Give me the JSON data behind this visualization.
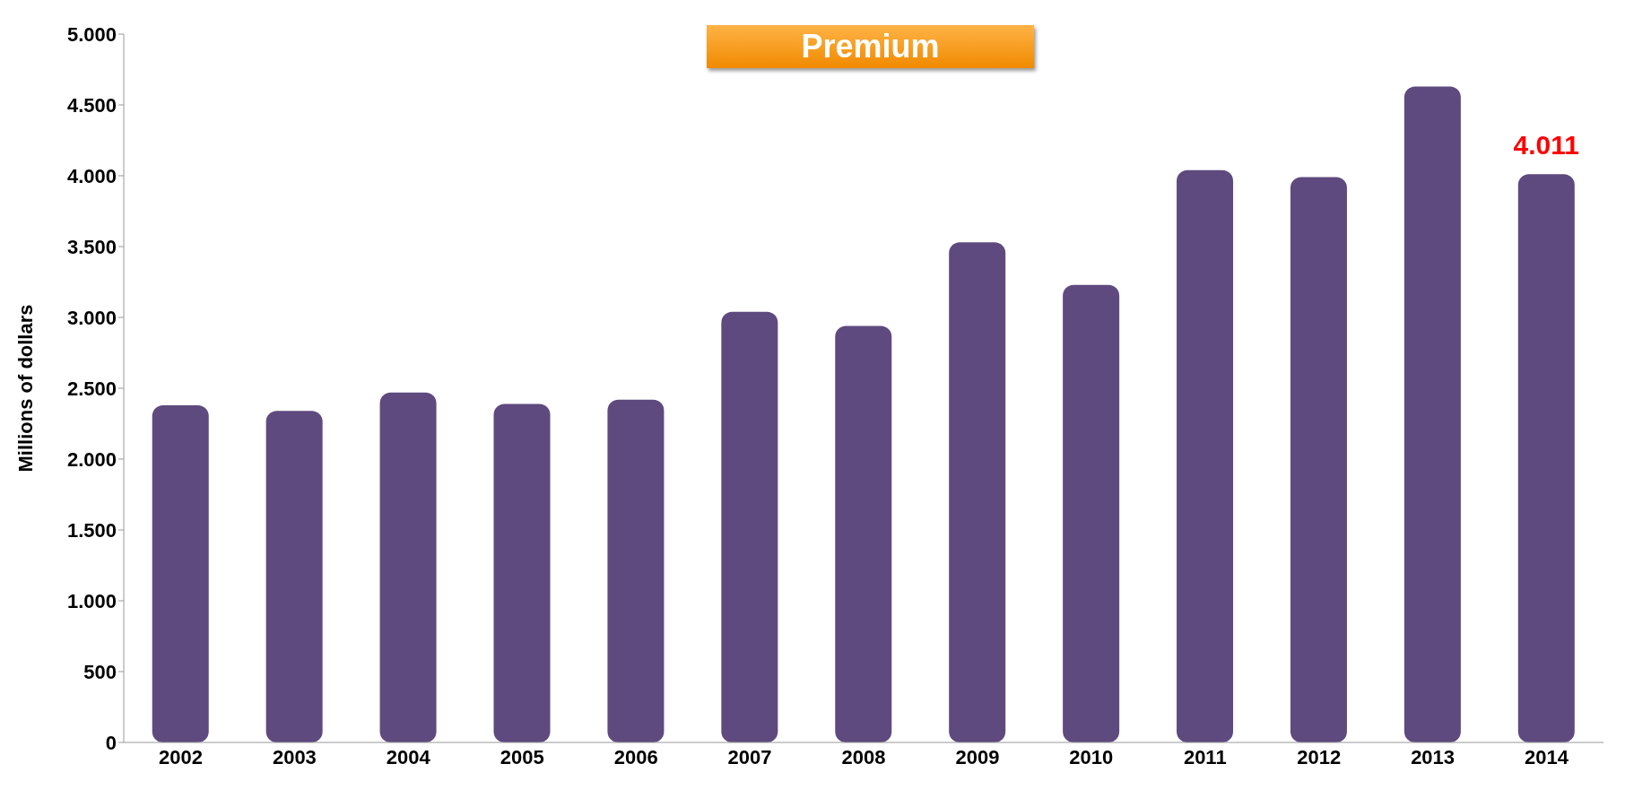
{
  "chart_data": {
    "type": "bar",
    "title": "Premium",
    "ylabel": "Millions of dollars",
    "categories": [
      "2002",
      "2003",
      "2004",
      "2005",
      "2006",
      "2007",
      "2008",
      "2009",
      "2010",
      "2011",
      "2012",
      "2013",
      "2014"
    ],
    "values": [
      2380,
      2340,
      2470,
      2390,
      2420,
      3040,
      2940,
      3530,
      3230,
      4040,
      3990,
      4630,
      4011
    ],
    "value_labels": [
      null,
      null,
      null,
      null,
      null,
      null,
      null,
      null,
      null,
      null,
      null,
      null,
      "4.011"
    ],
    "color": "#5e4a7e",
    "ylim": [
      0,
      5000
    ],
    "yticks": [
      {
        "value": 0,
        "label": "0"
      },
      {
        "value": 500,
        "label": "500"
      },
      {
        "value": 1000,
        "label": "1.000"
      },
      {
        "value": 1500,
        "label": "1.500"
      },
      {
        "value": 2000,
        "label": "2.000"
      },
      {
        "value": 2500,
        "label": "2.500"
      },
      {
        "value": 3000,
        "label": "3.000"
      },
      {
        "value": 3500,
        "label": "3.500"
      },
      {
        "value": 4000,
        "label": "4.000"
      },
      {
        "value": 4500,
        "label": "4.500"
      },
      {
        "value": 5000,
        "label": "5.000"
      }
    ],
    "grid": false,
    "legend": false
  }
}
